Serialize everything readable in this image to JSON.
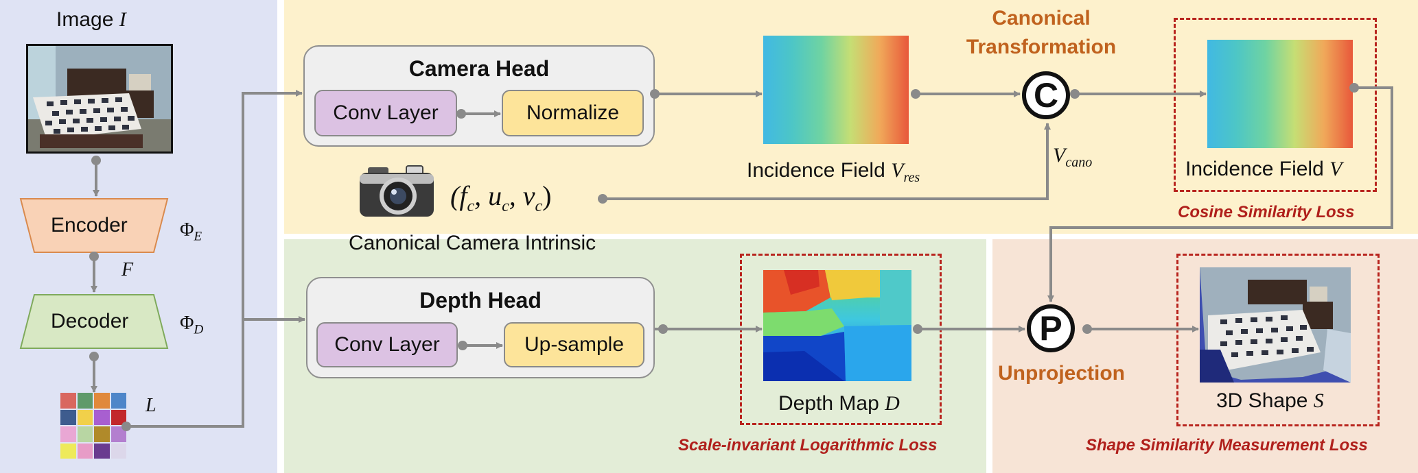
{
  "colors": {
    "encoder_panel_bg": "#dfe3f4",
    "camera_panel_bg": "#fdf1cc",
    "depth_panel_bg": "#e3edd7",
    "shape_panel_bg": "#f7e4d6",
    "loss_text": "#b0201c",
    "transform_text": "#c0621e",
    "arrow": "#8a8a8a"
  },
  "input": {
    "image_label": "Image ",
    "image_symbol": "I"
  },
  "encoder": {
    "encoder_label": "Encoder",
    "encoder_symbol": "Φ",
    "encoder_sub": "E",
    "feature_symbol": "F",
    "decoder_label": "Decoder",
    "decoder_symbol": "Φ",
    "decoder_sub": "D",
    "latent_symbol": "L",
    "latent_grid_colors": [
      "#d9675f",
      "#5f9a6a",
      "#e0893c",
      "#4e86c9",
      "#3e5c8e",
      "#f1d04a",
      "#a85fd0",
      "#c2282b",
      "#e9a7d4",
      "#b8d6a3",
      "#b08a2a",
      "#b37fcf",
      "#eeea5a",
      "#e79cc7",
      "#6a3b8f",
      "#dcd7ea"
    ]
  },
  "camera_head": {
    "title": "Camera Head",
    "conv_label": "Conv Layer",
    "normalize_label": "Normalize",
    "field_res_label": "Incidence Field ",
    "field_res_symbol": "V",
    "field_res_sub": "res",
    "transform_label_line1": "Canonical",
    "transform_label_line2": "Transformation",
    "transform_glyph": "C",
    "v_cano_symbol": "V",
    "v_cano_sub": "cano",
    "intrinsic_tuple": "(f",
    "intrinsic_sub_f": "c",
    "intrinsic_u": ", u",
    "intrinsic_sub_u": "c",
    "intrinsic_v": ", v",
    "intrinsic_sub_v": "c",
    "intrinsic_close": ")",
    "intrinsic_label": "Canonical Camera Intrinsic",
    "field_label": "Incidence Field ",
    "field_symbol": "V",
    "cosine_loss": "Cosine Similarity Loss"
  },
  "depth_head": {
    "title": "Depth Head",
    "conv_label": "Conv Layer",
    "upsample_label": "Up-sample",
    "depth_label": "Depth Map ",
    "depth_symbol": "D",
    "depth_loss": "Scale-invariant Logarithmic Loss"
  },
  "shape": {
    "unprojection_glyph": "P",
    "unprojection_label": "Unprojection",
    "shape_label": "3D Shape ",
    "shape_symbol": "S",
    "shape_loss": "Shape Similarity Measurement  Loss"
  }
}
